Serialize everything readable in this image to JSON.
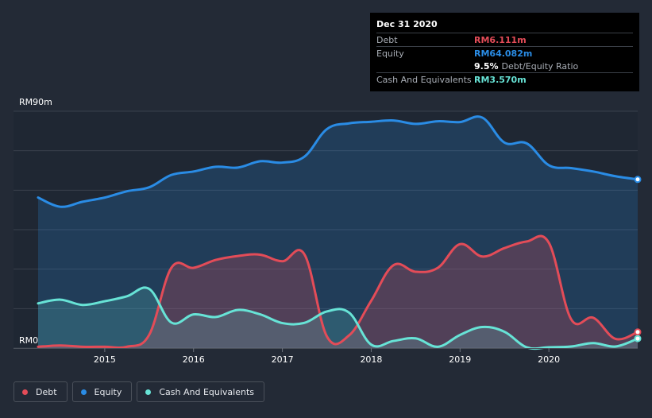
{
  "colors": {
    "background": "#232a36",
    "debt": "#e34c58",
    "equity": "#2a8ce5",
    "cash": "#67e3d6",
    "grid": "#3a414d"
  },
  "tooltip": {
    "date": "Dec 31 2020",
    "rows": [
      {
        "label": "Debt",
        "value": "RM6.111m",
        "color": "#e34c58"
      },
      {
        "label": "Equity",
        "value": "RM64.082m",
        "color": "#2a8ce5"
      },
      {
        "label": "",
        "value": "9.5%",
        "suffix": "Debt/Equity Ratio",
        "color": "#ffffff"
      },
      {
        "label": "Cash And Equivalents",
        "value": "RM3.570m",
        "color": "#67e3d6"
      }
    ]
  },
  "legend": [
    {
      "label": "Debt",
      "color": "#e34c58"
    },
    {
      "label": "Equity",
      "color": "#2a8ce5"
    },
    {
      "label": "Cash And Equivalents",
      "color": "#67e3d6"
    }
  ],
  "chart_data": {
    "type": "area",
    "title": "",
    "xlabel": "",
    "ylabel": "",
    "y_top_label": "RM90m",
    "y_bottom_label": "RM0",
    "ylim": [
      0,
      90
    ],
    "xlim": [
      2014.25,
      2021.0
    ],
    "x_ticks": [
      2015,
      2016,
      2017,
      2018,
      2019,
      2020
    ],
    "x_tick_labels": [
      "2015",
      "2016",
      "2017",
      "2018",
      "2019",
      "2020"
    ],
    "series": [
      {
        "name": "Equity",
        "points": [
          [
            2014.25,
            57.2
          ],
          [
            2014.5,
            53.7
          ],
          [
            2014.75,
            55.6
          ],
          [
            2015.0,
            57.2
          ],
          [
            2015.25,
            59.6
          ],
          [
            2015.5,
            61.1
          ],
          [
            2015.75,
            65.8
          ],
          [
            2016.0,
            67.1
          ],
          [
            2016.25,
            68.9
          ],
          [
            2016.5,
            68.6
          ],
          [
            2016.75,
            71.0
          ],
          [
            2017.0,
            70.5
          ],
          [
            2017.25,
            72.8
          ],
          [
            2017.5,
            83.2
          ],
          [
            2017.75,
            85.4
          ],
          [
            2018.0,
            86.0
          ],
          [
            2018.25,
            86.5
          ],
          [
            2018.5,
            85.2
          ],
          [
            2018.75,
            86.2
          ],
          [
            2019.0,
            85.9
          ],
          [
            2019.25,
            87.6
          ],
          [
            2019.5,
            78.1
          ],
          [
            2019.75,
            77.8
          ],
          [
            2020.0,
            69.5
          ],
          [
            2020.25,
            68.4
          ],
          [
            2020.5,
            67.1
          ],
          [
            2020.75,
            65.3
          ],
          [
            2021.0,
            64.1
          ]
        ]
      },
      {
        "name": "Debt",
        "points": [
          [
            2014.25,
            0.5
          ],
          [
            2014.5,
            1.0
          ],
          [
            2014.75,
            0.5
          ],
          [
            2015.0,
            0.5
          ],
          [
            2015.25,
            0.5
          ],
          [
            2015.5,
            5.0
          ],
          [
            2015.75,
            30.5
          ],
          [
            2016.0,
            30.5
          ],
          [
            2016.25,
            33.5
          ],
          [
            2016.5,
            35.0
          ],
          [
            2016.75,
            35.5
          ],
          [
            2017.0,
            33.0
          ],
          [
            2017.25,
            35.5
          ],
          [
            2017.5,
            4.5
          ],
          [
            2017.75,
            4.8
          ],
          [
            2018.0,
            18.0
          ],
          [
            2018.25,
            31.5
          ],
          [
            2018.5,
            29.0
          ],
          [
            2018.75,
            30.5
          ],
          [
            2019.0,
            39.5
          ],
          [
            2019.25,
            34.8
          ],
          [
            2019.5,
            38.0
          ],
          [
            2019.75,
            40.5
          ],
          [
            2020.0,
            40.0
          ],
          [
            2020.25,
            11.0
          ],
          [
            2020.5,
            11.5
          ],
          [
            2020.75,
            3.5
          ],
          [
            2021.0,
            6.1
          ]
        ]
      },
      {
        "name": "Cash And Equivalents",
        "points": [
          [
            2014.25,
            17.0
          ],
          [
            2014.5,
            18.4
          ],
          [
            2014.75,
            16.4
          ],
          [
            2015.0,
            17.8
          ],
          [
            2015.25,
            19.7
          ],
          [
            2015.5,
            22.5
          ],
          [
            2015.75,
            9.7
          ],
          [
            2016.0,
            12.8
          ],
          [
            2016.25,
            11.8
          ],
          [
            2016.5,
            14.5
          ],
          [
            2016.75,
            12.8
          ],
          [
            2017.0,
            9.5
          ],
          [
            2017.25,
            9.6
          ],
          [
            2017.5,
            13.9
          ],
          [
            2017.75,
            13.5
          ],
          [
            2018.0,
            1.3
          ],
          [
            2018.25,
            2.7
          ],
          [
            2018.5,
            3.7
          ],
          [
            2018.75,
            0.5
          ],
          [
            2019.0,
            5.0
          ],
          [
            2019.25,
            8.0
          ],
          [
            2019.5,
            6.2
          ],
          [
            2019.75,
            0.3
          ],
          [
            2020.0,
            0.3
          ],
          [
            2020.25,
            0.6
          ],
          [
            2020.5,
            1.9
          ],
          [
            2020.75,
            0.6
          ],
          [
            2021.0,
            3.6
          ]
        ]
      }
    ]
  }
}
